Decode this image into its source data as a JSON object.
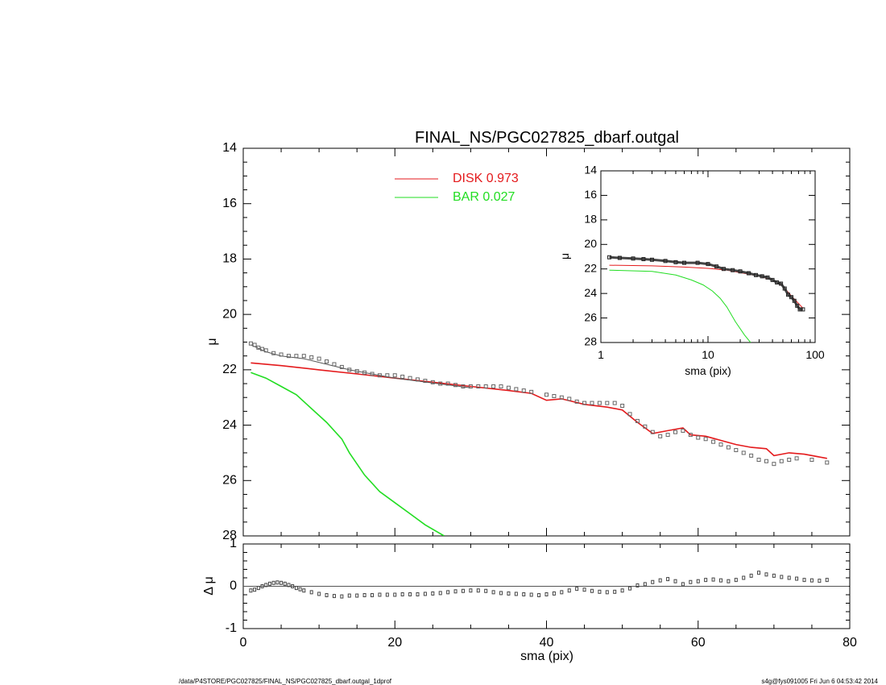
{
  "chart_data": [
    {
      "id": "main",
      "type": "line",
      "title": "FINAL_NS/PGC027825_dbarf.outgal",
      "xlabel": "",
      "ylabel": "μ",
      "xlim": [
        0,
        80
      ],
      "ylim": [
        28,
        14
      ],
      "xticks": [
        "",
        "",
        "",
        "",
        ""
      ],
      "yticks": [
        "14",
        "16",
        "18",
        "20",
        "22",
        "24",
        "26",
        "28"
      ],
      "legend": {
        "position": "top-center",
        "entries": [
          {
            "label": "DISK  0.973",
            "color": "#e41a1c"
          },
          {
            "label": "BAR  0.027",
            "color": "#22dd22"
          }
        ]
      },
      "series": [
        {
          "name": "DISK",
          "color": "#e41a1c",
          "x": [
            1,
            5,
            10,
            15,
            20,
            25,
            30,
            35,
            38,
            40,
            42,
            45,
            48,
            50,
            52,
            54,
            56,
            58,
            59,
            61,
            63,
            65,
            67,
            69,
            70,
            72,
            74,
            77
          ],
          "y": [
            21.75,
            21.85,
            22.0,
            22.15,
            22.3,
            22.45,
            22.6,
            22.75,
            22.85,
            23.1,
            23.05,
            23.25,
            23.35,
            23.45,
            23.9,
            24.3,
            24.2,
            24.1,
            24.35,
            24.4,
            24.55,
            24.7,
            24.8,
            24.85,
            25.1,
            25.0,
            25.05,
            25.2
          ]
        },
        {
          "name": "BAR",
          "color": "#22dd22",
          "x": [
            1,
            3,
            5,
            7,
            9,
            11,
            13,
            14,
            16,
            18,
            20,
            22,
            24,
            26.5
          ],
          "y": [
            22.1,
            22.3,
            22.6,
            22.9,
            23.4,
            23.9,
            24.5,
            25.0,
            25.8,
            26.4,
            26.8,
            27.2,
            27.6,
            28.0
          ]
        },
        {
          "name": "",
          "color": "#555555",
          "x": [
            1,
            3,
            5,
            8,
            11,
            14,
            20,
            30
          ],
          "y": [
            21.1,
            21.35,
            21.5,
            21.6,
            21.8,
            22.0,
            22.3,
            22.65
          ]
        },
        {
          "name": "",
          "type": "scatter",
          "color": "#666666",
          "x": [
            1,
            1.5,
            2,
            2.5,
            3,
            4,
            5,
            6,
            7,
            8,
            9,
            10,
            11,
            12,
            13,
            14,
            15,
            16,
            17,
            18,
            19,
            20,
            21,
            22,
            23,
            24,
            25,
            26,
            27,
            28,
            29,
            30,
            31,
            32,
            33,
            34,
            35,
            36,
            37,
            38,
            40,
            41,
            42,
            43,
            44,
            45,
            46,
            47,
            48,
            49,
            50,
            51,
            52,
            53,
            54,
            55,
            56,
            57,
            58,
            59,
            60,
            61,
            62,
            63,
            64,
            65,
            66,
            67,
            68,
            69,
            70,
            71,
            72,
            73,
            75,
            77
          ],
          "y": [
            21.05,
            21.1,
            21.2,
            21.25,
            21.3,
            21.4,
            21.45,
            21.5,
            21.5,
            21.5,
            21.55,
            21.6,
            21.7,
            21.8,
            21.9,
            22.0,
            22.05,
            22.1,
            22.15,
            22.2,
            22.2,
            22.2,
            22.25,
            22.3,
            22.35,
            22.4,
            22.45,
            22.5,
            22.5,
            22.55,
            22.6,
            22.6,
            22.6,
            22.6,
            22.6,
            22.6,
            22.65,
            22.7,
            22.75,
            22.8,
            22.9,
            22.95,
            23.0,
            23.05,
            23.15,
            23.2,
            23.2,
            23.2,
            23.2,
            23.2,
            23.3,
            23.6,
            23.85,
            24.05,
            24.25,
            24.4,
            24.35,
            24.25,
            24.2,
            24.35,
            24.45,
            24.5,
            24.6,
            24.7,
            24.8,
            24.9,
            25.0,
            25.1,
            25.25,
            25.3,
            25.4,
            25.3,
            25.25,
            25.2,
            25.25,
            25.35
          ]
        }
      ]
    },
    {
      "id": "residual",
      "type": "scatter",
      "xlabel": "sma (pix)",
      "ylabel": "Δ μ",
      "xlim": [
        0,
        80
      ],
      "ylim": [
        -1,
        1
      ],
      "xticks": [
        "0",
        "20",
        "40",
        "60",
        "80"
      ],
      "yticks": [
        "-1",
        "0",
        "1"
      ],
      "zero_line": true,
      "series": [
        {
          "name": "",
          "color": "#444444",
          "x": [
            1,
            1.5,
            2,
            2.5,
            3,
            3.5,
            4,
            4.5,
            5,
            5.5,
            6,
            6.5,
            7,
            7.5,
            8,
            9,
            10,
            11,
            12,
            13,
            14,
            15,
            16,
            17,
            18,
            19,
            20,
            21,
            22,
            23,
            24,
            25,
            26,
            27,
            28,
            29,
            30,
            31,
            32,
            33,
            34,
            35,
            36,
            37,
            38,
            39,
            40,
            41,
            42,
            43,
            44,
            45,
            46,
            47,
            48,
            49,
            50,
            51,
            52,
            53,
            54,
            55,
            56,
            57,
            58,
            59,
            60,
            61,
            62,
            63,
            64,
            65,
            66,
            67,
            68,
            69,
            70,
            71,
            72,
            73,
            74,
            75,
            76,
            77
          ],
          "y": [
            -0.1,
            -0.08,
            -0.04,
            0.0,
            0.03,
            0.06,
            0.08,
            0.09,
            0.08,
            0.06,
            0.03,
            0.0,
            -0.04,
            -0.07,
            -0.1,
            -0.14,
            -0.18,
            -0.21,
            -0.23,
            -0.24,
            -0.22,
            -0.22,
            -0.21,
            -0.21,
            -0.2,
            -0.2,
            -0.2,
            -0.19,
            -0.19,
            -0.19,
            -0.18,
            -0.17,
            -0.16,
            -0.14,
            -0.12,
            -0.11,
            -0.1,
            -0.1,
            -0.11,
            -0.14,
            -0.16,
            -0.17,
            -0.18,
            -0.19,
            -0.2,
            -0.21,
            -0.19,
            -0.17,
            -0.14,
            -0.1,
            -0.06,
            -0.08,
            -0.11,
            -0.13,
            -0.14,
            -0.13,
            -0.1,
            -0.05,
            0.02,
            0.05,
            0.1,
            0.14,
            0.17,
            0.12,
            0.05,
            0.1,
            0.12,
            0.15,
            0.16,
            0.14,
            0.12,
            0.15,
            0.2,
            0.25,
            0.32,
            0.28,
            0.25,
            0.22,
            0.2,
            0.18,
            0.15,
            0.14,
            0.13,
            0.15
          ]
        }
      ]
    },
    {
      "id": "inset",
      "type": "line",
      "xlabel": "sma (pix)",
      "ylabel": "μ",
      "xscale": "log",
      "xlim": [
        1,
        100
      ],
      "ylim": [
        28,
        14
      ],
      "xticks": [
        "1",
        "10",
        "100"
      ],
      "yticks": [
        "14",
        "16",
        "18",
        "20",
        "22",
        "24",
        "26",
        "28"
      ],
      "series": [
        {
          "name": "",
          "color": "#e41a1c",
          "x": [
            1.2,
            3,
            6,
            10,
            15,
            20,
            30,
            40,
            50,
            60,
            77
          ],
          "y": [
            21.7,
            21.75,
            21.85,
            21.95,
            22.1,
            22.3,
            22.6,
            22.9,
            23.4,
            24.2,
            25.2
          ]
        },
        {
          "name": "",
          "color": "#22dd22",
          "x": [
            1.2,
            3,
            5,
            7,
            9,
            11,
            13,
            15,
            18,
            22,
            25
          ],
          "y": [
            22.1,
            22.2,
            22.5,
            22.9,
            23.3,
            23.8,
            24.4,
            25.1,
            26.3,
            27.4,
            28.0
          ]
        },
        {
          "name": "",
          "type": "scatter",
          "color": "#444444",
          "x": [
            1.2,
            1.5,
            2,
            2.5,
            3,
            4,
            5,
            6,
            8,
            10,
            12,
            14,
            17,
            20,
            24,
            28,
            32,
            36,
            40,
            44,
            48,
            52,
            56,
            60,
            64,
            68,
            72,
            77
          ],
          "y": [
            21.05,
            21.1,
            21.15,
            21.2,
            21.25,
            21.35,
            21.45,
            21.5,
            21.5,
            21.6,
            21.8,
            22.0,
            22.1,
            22.2,
            22.35,
            22.5,
            22.6,
            22.7,
            22.9,
            23.1,
            23.2,
            23.6,
            24.1,
            24.3,
            24.6,
            25.0,
            25.3,
            25.3
          ]
        }
      ]
    }
  ],
  "footer": {
    "left": "/data/P4STORE/PGC027825/FINAL_NS/PGC027825_dbarf.outgal_1dprof",
    "right": "s4g@fys091005  Fri Jun  6 04:53:42 2014"
  }
}
